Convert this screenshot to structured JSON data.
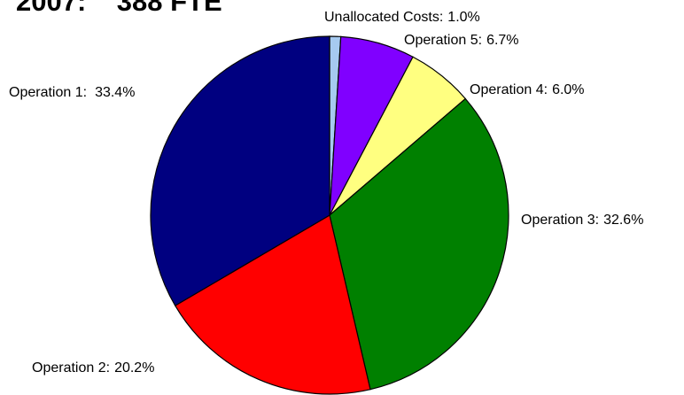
{
  "chart_data": {
    "type": "pie",
    "title": "2007:    388 FTE",
    "categories": [
      "Unallocated Costs:",
      "Operation 5:",
      "Operation 4:",
      "Operation 3:",
      "Operation 2:",
      "Operation 1:"
    ],
    "values": [
      1.0,
      6.7,
      6.0,
      32.6,
      20.2,
      33.4
    ],
    "value_labels": [
      "1.0%",
      "6.7%",
      "6.0%",
      "32.6%",
      "20.2%",
      "33.4%"
    ],
    "colors": [
      "#a6caf0",
      "#8000ff",
      "#ffff80",
      "#008000",
      "#ff0000",
      "#000080"
    ]
  }
}
